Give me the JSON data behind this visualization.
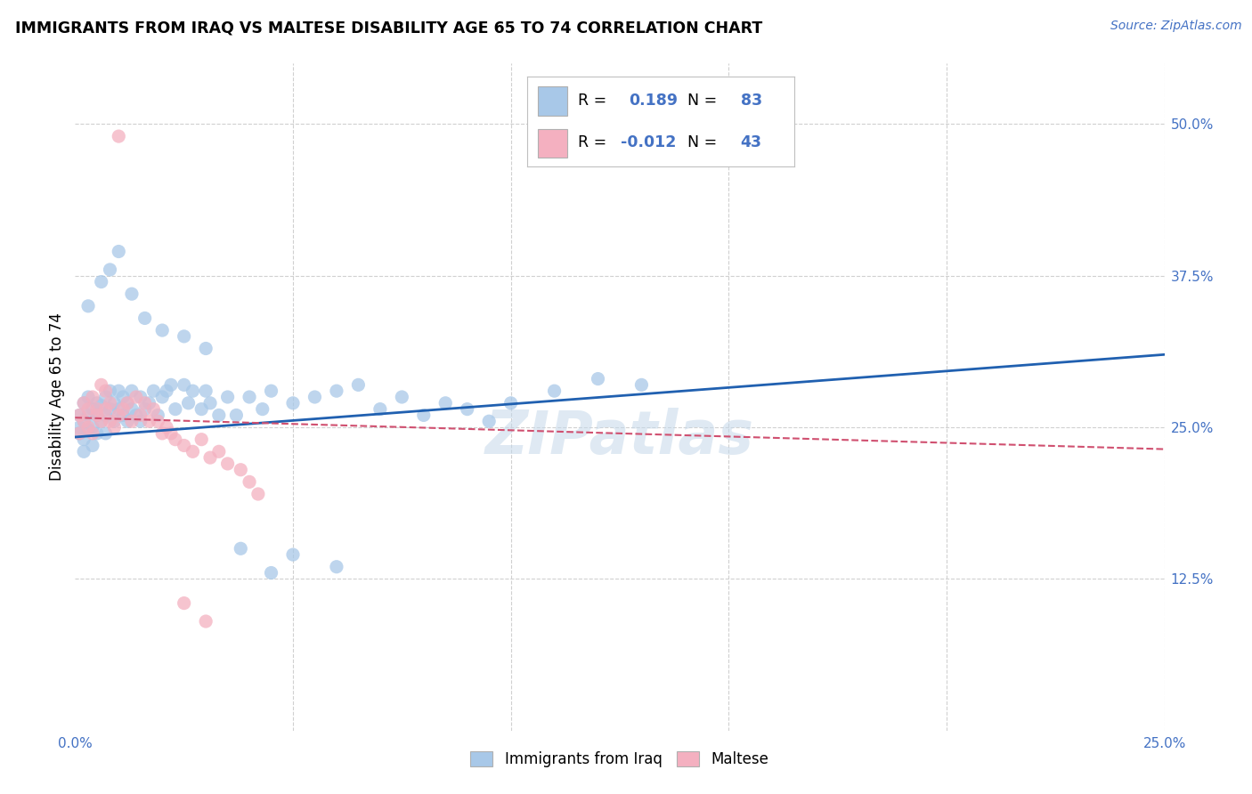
{
  "title": "IMMIGRANTS FROM IRAQ VS MALTESE DISABILITY AGE 65 TO 74 CORRELATION CHART",
  "source": "Source: ZipAtlas.com",
  "ylabel": "Disability Age 65 to 74",
  "xlim": [
    0.0,
    0.25
  ],
  "ylim": [
    0.0,
    0.55
  ],
  "xtick_positions": [
    0.0,
    0.05,
    0.1,
    0.15,
    0.2,
    0.25
  ],
  "xticklabels": [
    "0.0%",
    "",
    "",
    "",
    "",
    "25.0%"
  ],
  "ytick_positions": [
    0.125,
    0.25,
    0.375,
    0.5
  ],
  "ytick_labels": [
    "12.5%",
    "25.0%",
    "37.5%",
    "50.0%"
  ],
  "legend_iraq_label": "Immigrants from Iraq",
  "legend_maltese_label": "Maltese",
  "blue_color": "#a8c8e8",
  "pink_color": "#f4b0c0",
  "blue_line_color": "#2060b0",
  "pink_line_color": "#d05070",
  "blue_trendline_x": [
    0.0,
    0.25
  ],
  "blue_trendline_y": [
    0.242,
    0.31
  ],
  "pink_trendline_x": [
    0.0,
    0.25
  ],
  "pink_trendline_y": [
    0.258,
    0.232
  ],
  "watermark_text": "ZIPatlas",
  "legend_R1": "0.189",
  "legend_N1": "83",
  "legend_R2": "-0.012",
  "legend_N2": "43",
  "blue_scatter_x": [
    0.001,
    0.001,
    0.001,
    0.002,
    0.002,
    0.002,
    0.002,
    0.003,
    0.003,
    0.003,
    0.004,
    0.004,
    0.004,
    0.005,
    0.005,
    0.005,
    0.006,
    0.006,
    0.007,
    0.007,
    0.007,
    0.008,
    0.008,
    0.009,
    0.009,
    0.01,
    0.01,
    0.011,
    0.011,
    0.012,
    0.012,
    0.013,
    0.013,
    0.014,
    0.015,
    0.015,
    0.016,
    0.017,
    0.018,
    0.019,
    0.02,
    0.021,
    0.022,
    0.023,
    0.025,
    0.026,
    0.027,
    0.029,
    0.03,
    0.031,
    0.033,
    0.035,
    0.037,
    0.04,
    0.043,
    0.045,
    0.05,
    0.055,
    0.06,
    0.065,
    0.07,
    0.075,
    0.08,
    0.085,
    0.09,
    0.095,
    0.1,
    0.11,
    0.12,
    0.13,
    0.003,
    0.006,
    0.008,
    0.01,
    0.013,
    0.016,
    0.02,
    0.025,
    0.03,
    0.038,
    0.045,
    0.05,
    0.06
  ],
  "blue_scatter_y": [
    0.26,
    0.25,
    0.245,
    0.255,
    0.27,
    0.24,
    0.23,
    0.26,
    0.275,
    0.248,
    0.265,
    0.25,
    0.235,
    0.27,
    0.26,
    0.245,
    0.255,
    0.268,
    0.275,
    0.26,
    0.245,
    0.265,
    0.28,
    0.27,
    0.255,
    0.28,
    0.265,
    0.275,
    0.26,
    0.27,
    0.255,
    0.28,
    0.265,
    0.26,
    0.275,
    0.255,
    0.265,
    0.27,
    0.28,
    0.26,
    0.275,
    0.28,
    0.285,
    0.265,
    0.285,
    0.27,
    0.28,
    0.265,
    0.28,
    0.27,
    0.26,
    0.275,
    0.26,
    0.275,
    0.265,
    0.28,
    0.27,
    0.275,
    0.28,
    0.285,
    0.265,
    0.275,
    0.26,
    0.27,
    0.265,
    0.255,
    0.27,
    0.28,
    0.29,
    0.285,
    0.35,
    0.37,
    0.38,
    0.395,
    0.36,
    0.34,
    0.33,
    0.325,
    0.315,
    0.15,
    0.13,
    0.145,
    0.135
  ],
  "pink_scatter_x": [
    0.001,
    0.001,
    0.002,
    0.002,
    0.003,
    0.003,
    0.004,
    0.004,
    0.005,
    0.005,
    0.006,
    0.006,
    0.007,
    0.007,
    0.008,
    0.008,
    0.009,
    0.01,
    0.011,
    0.012,
    0.013,
    0.014,
    0.015,
    0.016,
    0.017,
    0.018,
    0.019,
    0.02,
    0.021,
    0.022,
    0.023,
    0.025,
    0.027,
    0.029,
    0.031,
    0.033,
    0.035,
    0.038,
    0.04,
    0.042,
    0.01,
    0.025,
    0.03
  ],
  "pink_scatter_y": [
    0.26,
    0.245,
    0.27,
    0.255,
    0.265,
    0.25,
    0.275,
    0.245,
    0.26,
    0.265,
    0.285,
    0.255,
    0.28,
    0.265,
    0.27,
    0.255,
    0.25,
    0.26,
    0.265,
    0.27,
    0.255,
    0.275,
    0.26,
    0.27,
    0.255,
    0.265,
    0.255,
    0.245,
    0.25,
    0.245,
    0.24,
    0.235,
    0.23,
    0.24,
    0.225,
    0.23,
    0.22,
    0.215,
    0.205,
    0.195,
    0.49,
    0.105,
    0.09
  ]
}
